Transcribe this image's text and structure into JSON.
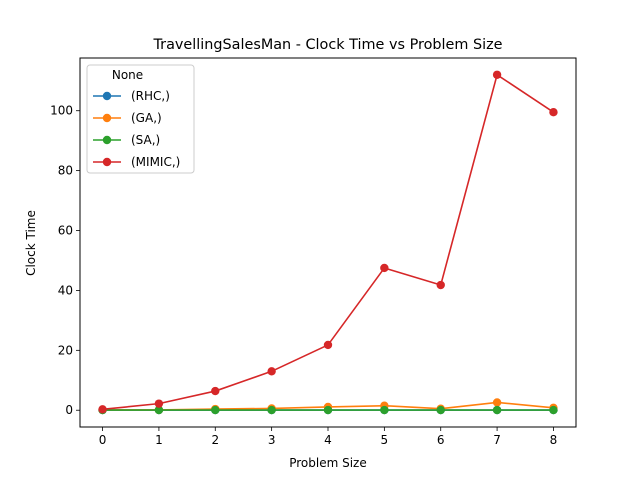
{
  "chart_data": {
    "type": "line",
    "title": "TravellingSalesMan - Clock Time vs Problem Size",
    "xlabel": "Problem Size",
    "ylabel": "Clock Time",
    "x": [
      0,
      1,
      2,
      3,
      4,
      5,
      6,
      7,
      8
    ],
    "xlim": [
      -0.4,
      8.4
    ],
    "ylim": [
      -5.6,
      117.6
    ],
    "xticks": [
      0,
      1,
      2,
      3,
      4,
      5,
      6,
      7,
      8
    ],
    "yticks": [
      0,
      20,
      40,
      60,
      80,
      100
    ],
    "grid": false,
    "legend": {
      "title": "None",
      "position": "top-left"
    },
    "series": [
      {
        "name": "(RHC,)",
        "color": "#1f77b4",
        "values": [
          0.05,
          0.05,
          0.05,
          0.05,
          0.05,
          0.05,
          0.05,
          0.05,
          0.05
        ]
      },
      {
        "name": "(GA,)",
        "color": "#ff7f0e",
        "values": [
          0.1,
          0.1,
          0.4,
          0.6,
          1.1,
          1.5,
          0.5,
          2.6,
          0.8
        ]
      },
      {
        "name": "(SA,)",
        "color": "#2ca02c",
        "values": [
          0.05,
          0.05,
          0.05,
          0.05,
          0.05,
          0.05,
          0.05,
          0.05,
          0.05
        ]
      },
      {
        "name": "(MIMIC,)",
        "color": "#d62728",
        "values": [
          0.3,
          2.2,
          6.4,
          13.0,
          21.8,
          47.5,
          41.8,
          112.0,
          99.5
        ]
      }
    ]
  }
}
